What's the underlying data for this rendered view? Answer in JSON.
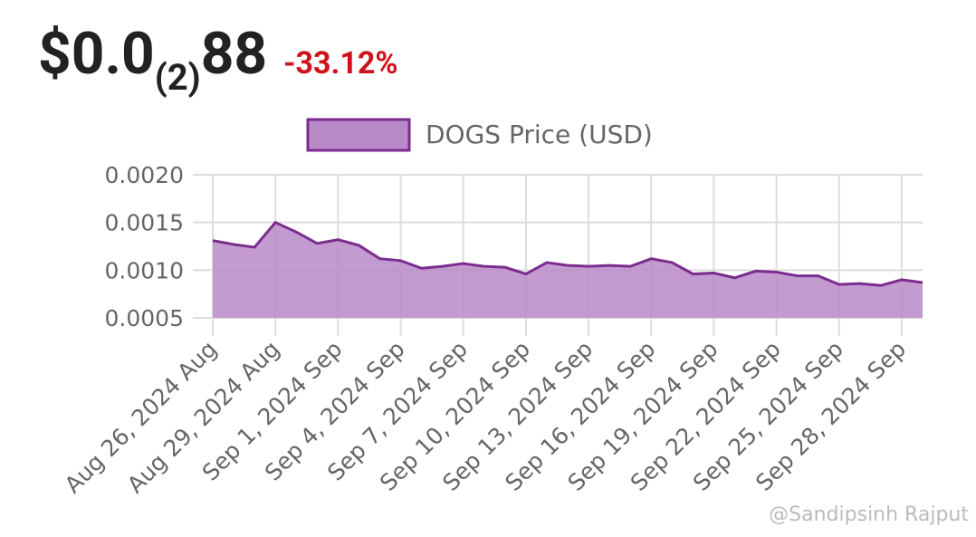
{
  "header": {
    "price_main": "$0.0",
    "price_sub": "(2)",
    "price_tail": "88",
    "change": "-33.12%"
  },
  "chart_data": {
    "type": "area",
    "series": [
      {
        "name": "DOGS Price (USD)",
        "color": "#7b2d8e",
        "fill": "#b98ac8",
        "x": [
          "2024-08-26",
          "2024-08-27",
          "2024-08-28",
          "2024-08-29",
          "2024-08-30",
          "2024-08-31",
          "2024-09-01",
          "2024-09-02",
          "2024-09-03",
          "2024-09-04",
          "2024-09-05",
          "2024-09-06",
          "2024-09-07",
          "2024-09-08",
          "2024-09-09",
          "2024-09-10",
          "2024-09-11",
          "2024-09-12",
          "2024-09-13",
          "2024-09-14",
          "2024-09-15",
          "2024-09-16",
          "2024-09-17",
          "2024-09-18",
          "2024-09-19",
          "2024-09-20",
          "2024-09-21",
          "2024-09-22",
          "2024-09-23",
          "2024-09-24",
          "2024-09-25",
          "2024-09-26",
          "2024-09-27",
          "2024-09-28",
          "2024-09-29"
        ],
        "values": [
          0.00131,
          0.00127,
          0.00124,
          0.0015,
          0.0014,
          0.00128,
          0.00132,
          0.00126,
          0.00112,
          0.0011,
          0.00102,
          0.00104,
          0.00107,
          0.00104,
          0.00103,
          0.00096,
          0.00108,
          0.00105,
          0.00104,
          0.00105,
          0.00104,
          0.00112,
          0.00108,
          0.00096,
          0.00097,
          0.00092,
          0.00099,
          0.00098,
          0.00094,
          0.00094,
          0.00085,
          0.00086,
          0.00084,
          0.0009,
          0.00087
        ]
      }
    ],
    "xlim": [
      "2024-08-26",
      "2024-09-29"
    ],
    "xticks": [
      {
        "value": "2024-08-26",
        "label": "Aug 26, 2024 Aug"
      },
      {
        "value": "2024-08-29",
        "label": "Aug 29, 2024 Aug"
      },
      {
        "value": "2024-09-01",
        "label": "Sep 1, 2024 Sep"
      },
      {
        "value": "2024-09-04",
        "label": "Sep 4, 2024 Sep"
      },
      {
        "value": "2024-09-07",
        "label": "Sep 7, 2024 Sep"
      },
      {
        "value": "2024-09-10",
        "label": "Sep 10, 2024 Sep"
      },
      {
        "value": "2024-09-13",
        "label": "Sep 13, 2024 Sep"
      },
      {
        "value": "2024-09-16",
        "label": "Sep 16, 2024 Sep"
      },
      {
        "value": "2024-09-19",
        "label": "Sep 19, 2024 Sep"
      },
      {
        "value": "2024-09-22",
        "label": "Sep 22, 2024 Sep"
      },
      {
        "value": "2024-09-25",
        "label": "Sep 25, 2024 Sep"
      },
      {
        "value": "2024-09-28",
        "label": "Sep 28, 2024 Sep"
      }
    ],
    "ylim": [
      0.0005,
      0.002
    ],
    "yticks": [
      0.0005,
      {
        "value": 0.001,
        "label": "0.0010"
      },
      0.0015,
      {
        "value": 0.002,
        "label": "0.0020"
      }
    ],
    "grid": true
  },
  "watermark": "@Sandipsinh Rajput"
}
